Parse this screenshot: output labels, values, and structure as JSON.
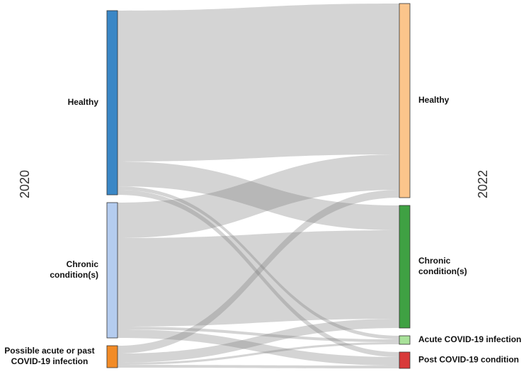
{
  "chart_data": {
    "type": "sankey",
    "left_title": "2020",
    "right_title": "2022",
    "nodes": [
      {
        "label": [
          "Healthy"
        ],
        "side": "left",
        "color": "#3a87c6"
      },
      {
        "label": [
          "Chronic",
          "condition(s)"
        ],
        "side": "left",
        "color": "#b4ccef"
      },
      {
        "label": [
          "Possible acute or past",
          "COVID-19 infection"
        ],
        "side": "left",
        "color": "#f28b26"
      },
      {
        "label": [
          "Healthy"
        ],
        "side": "right",
        "color": "#fbc58b"
      },
      {
        "label": [
          "Chronic",
          "condition(s)"
        ],
        "side": "right",
        "color": "#3fa143"
      },
      {
        "label": [
          "Acute COVID-19 infection"
        ],
        "side": "right",
        "color": "#a9e29a"
      },
      {
        "label": [
          "Post COVID-19 condition"
        ],
        "side": "right",
        "color": "#d83a3a"
      }
    ],
    "links": [
      {
        "source": 0,
        "target": 3,
        "value": 213
      },
      {
        "source": 0,
        "target": 4,
        "value": 35
      },
      {
        "source": 0,
        "target": 5,
        "value": 5
      },
      {
        "source": 0,
        "target": 6,
        "value": 7
      },
      {
        "source": 1,
        "target": 3,
        "value": 50
      },
      {
        "source": 1,
        "target": 4,
        "value": 125
      },
      {
        "source": 1,
        "target": 5,
        "value": 4
      },
      {
        "source": 1,
        "target": 6,
        "value": 12
      },
      {
        "source": 2,
        "target": 3,
        "value": 11
      },
      {
        "source": 2,
        "target": 4,
        "value": 13
      },
      {
        "source": 2,
        "target": 5,
        "value": 3
      },
      {
        "source": 2,
        "target": 6,
        "value": 4
      }
    ]
  }
}
